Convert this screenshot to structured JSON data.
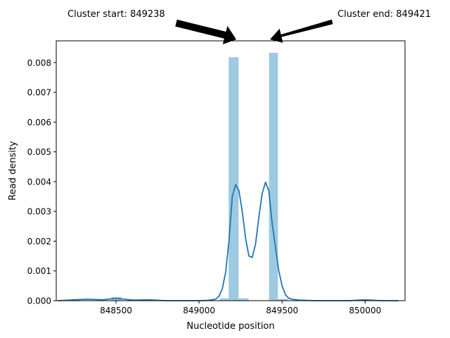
{
  "chart_data": {
    "type": "bar",
    "title": "",
    "xlabel": "Nucleotide position",
    "ylabel": "Read density",
    "xlim": [
      848140,
      850240
    ],
    "ylim": [
      0,
      0.00873
    ],
    "x_ticks": [
      {
        "value": 848500,
        "label": "848500"
      },
      {
        "value": 849000,
        "label": "849000"
      },
      {
        "value": 849500,
        "label": "849500"
      },
      {
        "value": 850000,
        "label": "850000"
      }
    ],
    "y_ticks": [
      {
        "value": 0.0,
        "label": "0.000"
      },
      {
        "value": 0.001,
        "label": "0.001"
      },
      {
        "value": 0.002,
        "label": "0.002"
      },
      {
        "value": 0.003,
        "label": "0.003"
      },
      {
        "value": 0.004,
        "label": "0.004"
      },
      {
        "value": 0.005,
        "label": "0.005"
      },
      {
        "value": 0.006,
        "label": "0.006"
      },
      {
        "value": 0.007,
        "label": "0.007"
      },
      {
        "value": 0.008,
        "label": "0.008"
      }
    ],
    "grid": false,
    "histogram": {
      "color": "#9ecae1",
      "bins": [
        {
          "x0": 848472,
          "x1": 848532,
          "value": 0.00012
        },
        {
          "x0": 849125,
          "x1": 849178,
          "value": 8e-05
        },
        {
          "x0": 849178,
          "x1": 849238,
          "value": 0.00818
        },
        {
          "x0": 849238,
          "x1": 849298,
          "value": 8e-05
        },
        {
          "x0": 849421,
          "x1": 849475,
          "value": 0.00833
        },
        {
          "x0": 849475,
          "x1": 849535,
          "value": 6e-05
        }
      ]
    },
    "kde": {
      "color": "#1f77b4",
      "x": [
        848150,
        848250,
        848330,
        848420,
        848500,
        848600,
        848700,
        848800,
        848900,
        849000,
        849050,
        849100,
        849120,
        849140,
        849160,
        849180,
        849200,
        849220,
        849240,
        849260,
        849280,
        849300,
        849320,
        849340,
        849360,
        849380,
        849400,
        849420,
        849440,
        849460,
        849480,
        849500,
        849520,
        849540,
        849560,
        849600,
        849700,
        849800,
        849900,
        850000,
        850100,
        850200
      ],
      "y": [
        0.0,
        3e-05,
        5e-05,
        3e-05,
        8e-05,
        2e-05,
        3e-05,
        0.0,
        0.0,
        0.0,
        1e-05,
        5e-05,
        0.00015,
        0.0004,
        0.00095,
        0.002,
        0.0035,
        0.0039,
        0.0037,
        0.003,
        0.0021,
        0.0015,
        0.00145,
        0.0019,
        0.0028,
        0.0036,
        0.00398,
        0.0037,
        0.0026,
        0.0018,
        0.001,
        0.0005,
        0.0002,
        8e-05,
        5e-05,
        2e-05,
        0.0,
        0.0,
        0.0,
        3e-05,
        0.0,
        0.0
      ]
    },
    "annotations": [
      {
        "text": "Cluster start: 849238",
        "x": 849238
      },
      {
        "text": "Cluster end: 849421",
        "x": 849421
      }
    ]
  }
}
